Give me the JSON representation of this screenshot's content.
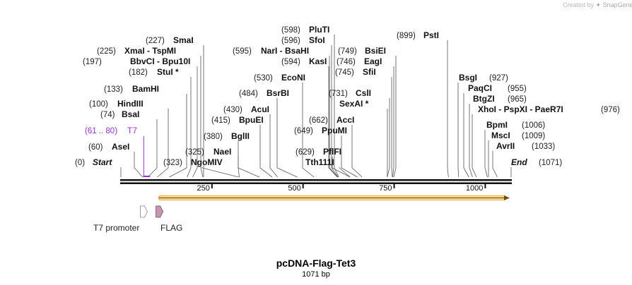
{
  "branding": {
    "text": "Created by",
    "logo": "SnapGene"
  },
  "map": {
    "name": "pcDNA-Flag-Tet3",
    "length_label": "1071 bp",
    "length": 1071,
    "ticks": [
      250,
      500,
      750,
      1000
    ],
    "sites": [
      {
        "pos": "(0)",
        "name": "Start",
        "style": "italic",
        "bp": 0
      },
      {
        "pos": "(60)",
        "name": "AseI",
        "bp": 60
      },
      {
        "pos": "(74)",
        "name": "BsaI",
        "bp": 74
      },
      {
        "pos": "(100)",
        "name": "HindIII",
        "bp": 100
      },
      {
        "pos": "(133)",
        "name": "BamHI",
        "bp": 133
      },
      {
        "pos": "(182)",
        "name": "StuI *",
        "bp": 182
      },
      {
        "pos": "(197)",
        "name": "BbvCI  -  Bpu10I",
        "bp": 197
      },
      {
        "pos": "(225)",
        "name": "XmaI  -  TspMI",
        "bp": 225
      },
      {
        "pos": "(227)",
        "name": "SmaI",
        "bp": 227
      },
      {
        "pos": "(323)",
        "name": "NgoMIV",
        "bp": 323
      },
      {
        "pos": "(325)",
        "name": "NaeI",
        "bp": 325
      },
      {
        "pos": "(380)",
        "name": "BglII",
        "bp": 380
      },
      {
        "pos": "(415)",
        "name": "BpuEI",
        "bp": 415
      },
      {
        "pos": "(430)",
        "name": "AcuI",
        "bp": 430
      },
      {
        "pos": "(484)",
        "name": "BsrBI",
        "bp": 484
      },
      {
        "pos": "(530)",
        "name": "EcoNI",
        "bp": 530
      },
      {
        "pos": "(595)",
        "name": "NarI  -  BsaHI",
        "bp": 595
      },
      {
        "pos": "(594)",
        "name": "KasI",
        "bp": 594
      },
      {
        "pos": "(596)",
        "name": "SfoI",
        "bp": 596
      },
      {
        "pos": "(598)",
        "name": "PluTI",
        "bp": 598
      },
      {
        "pos": "(629)",
        "name": "PflFI",
        "bp": 629
      },
      {
        "pos": "",
        "name": "Tth111I",
        "bp": 629
      },
      {
        "pos": "(649)",
        "name": "PpuMI",
        "bp": 649
      },
      {
        "pos": "(662)",
        "name": "AccI",
        "bp": 662
      },
      {
        "pos": "",
        "name": "SexAI *",
        "bp": 731
      },
      {
        "pos": "(731)",
        "name": "CslI",
        "bp": 731
      },
      {
        "pos": "(745)",
        "name": "SfiI",
        "bp": 745
      },
      {
        "pos": "(746)",
        "name": "EagI",
        "bp": 746
      },
      {
        "pos": "(749)",
        "name": "BsiEI",
        "bp": 749
      },
      {
        "pos": "(899)",
        "name": "PstI",
        "bp": 899
      },
      {
        "pos": "(927)",
        "name": "BsgI",
        "bp": 927
      },
      {
        "pos": "(955)",
        "name": "PaqCI",
        "bp": 955
      },
      {
        "pos": "(965)",
        "name": "BtgZI",
        "bp": 965
      },
      {
        "pos": "(976)",
        "name": "XhoI  -  PspXI  -  PaeR7I",
        "bp": 976
      },
      {
        "pos": "(1006)",
        "name": "BpmI",
        "bp": 1006
      },
      {
        "pos": "(1009)",
        "name": "MscI",
        "bp": 1009
      },
      {
        "pos": "(1033)",
        "name": "AvrII",
        "bp": 1033
      },
      {
        "pos": "(1071)",
        "name": "End",
        "style": "italic",
        "bp": 1071
      }
    ],
    "primer": {
      "pos": "(61 .. 80)",
      "name": "T7",
      "start": 61,
      "end": 80,
      "color": "#9b30d9"
    },
    "features": [
      {
        "label": "T7 promoter",
        "color": "#ffffff",
        "bp": 61
      },
      {
        "label": "FLAG",
        "color": "#c797b1",
        "bp": 104
      }
    ],
    "orf": {
      "start": 104,
      "end": 1071,
      "color": "#f5a623"
    }
  }
}
